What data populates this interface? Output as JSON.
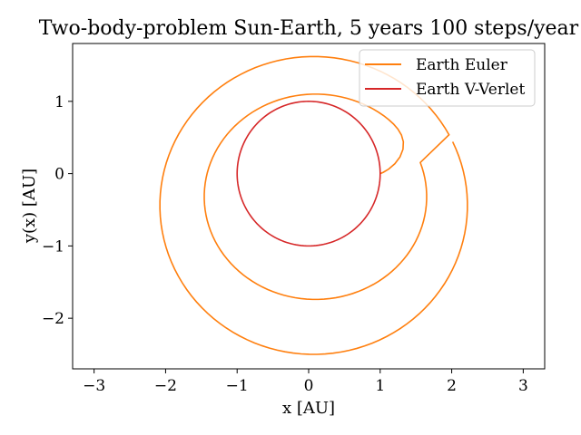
{
  "chart_data": {
    "type": "line",
    "title": "Two-body-problem Sun-Earth, 5 years 100 steps/year",
    "xlabel": "x [AU]",
    "ylabel": "y(x) [AU]",
    "xlim": [
      -3.3,
      3.3
    ],
    "ylim": [
      -2.7,
      1.8
    ],
    "xticks": [
      -3,
      -2,
      -1,
      0,
      1,
      2,
      3
    ],
    "xtick_labels": [
      "−3",
      "−2",
      "−1",
      "0",
      "1",
      "2",
      "3"
    ],
    "yticks": [
      -2,
      -1,
      0,
      1
    ],
    "ytick_labels": [
      "−2",
      "−1",
      "0",
      "1"
    ],
    "grid": false,
    "legend_position": "top-right",
    "series": [
      {
        "name": "Earth Euler",
        "color": "#ff7f0e",
        "orbits": [
          {
            "x_min": -1.46,
            "x_max": 1.65,
            "y_min": -1.74,
            "y_max": 1.1,
            "center_x": 0.095,
            "center_y": -0.32
          },
          {
            "x_min": -2.08,
            "x_max": 2.22,
            "y_min": -2.5,
            "y_max": 1.62,
            "center_x": 0.07,
            "center_y": -0.44
          }
        ],
        "start": {
          "x": 1.0,
          "y": 0.0
        }
      },
      {
        "name": "Earth V-Verlet",
        "color": "#d62728",
        "orbits": [
          {
            "x_min": -1.0,
            "x_max": 1.0,
            "y_min": -1.0,
            "y_max": 1.0,
            "center_x": 0.0,
            "center_y": 0.0
          }
        ],
        "start": {
          "x": 1.0,
          "y": 0.0
        }
      }
    ]
  }
}
